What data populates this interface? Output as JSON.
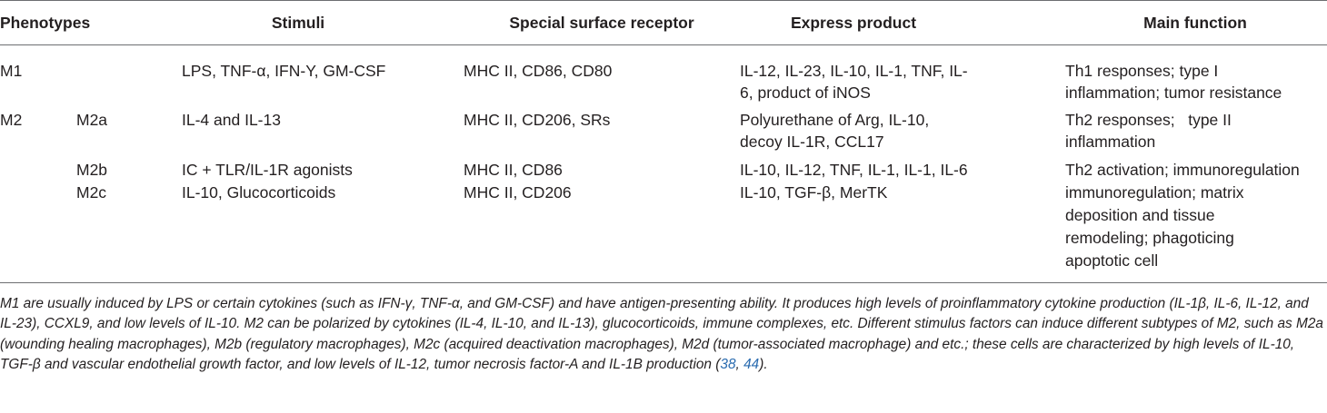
{
  "table": {
    "headers": {
      "phenotypes": "Phenotypes",
      "stimuli": "Stimuli",
      "receptor": "Special surface receptor",
      "product": "Express product",
      "function": "Main function"
    },
    "rows": [
      {
        "phenotype": "M1",
        "subtype": "",
        "stimuli": "LPS, TNF-α, IFN-Y, GM-CSF",
        "receptor": "MHC II, CD86, CD80",
        "product": [
          "IL-12, IL-23, IL-10, IL-1, TNF, IL-",
          "6, product of iNOS"
        ],
        "function": [
          "Th1 responses; type I",
          "inflammation; tumor resistance"
        ]
      },
      {
        "phenotype": "M2",
        "subtype": "M2a",
        "stimuli": "IL-4 and IL-13",
        "receptor": "MHC II, CD206, SRs",
        "product": [
          "Polyurethane of Arg, IL-10,",
          "decoy IL-1R, CCL17"
        ],
        "function": [
          "Th2 responses;   type II",
          "inflammation"
        ]
      },
      {
        "phenotype": "",
        "subtype": "M2b",
        "stimuli": "IC + TLR/IL-1R agonists",
        "receptor": "MHC II, CD86",
        "product": [
          "IL-10, IL-12, TNF, IL-1, IL-1, IL-6"
        ],
        "function": [
          "Th2 activation; immunoregulation"
        ]
      },
      {
        "phenotype": "",
        "subtype": "M2c",
        "stimuli": "IL-10, Glucocorticoids",
        "receptor": "MHC II, CD206",
        "product": [
          "IL-10, TGF-β, MerTK"
        ],
        "function": [
          "immunoregulation; matrix",
          "deposition and tissue",
          "remodeling; phagoticing",
          "apoptotic cell"
        ]
      }
    ]
  },
  "footnote": {
    "text": "M1 are usually induced by LPS or certain cytokines (such as IFN-γ, TNF-α, and GM-CSF) and have antigen-presenting ability. It produces high levels of proinflammatory cytokine production (IL-1β, IL-6, IL-12, and IL-23), CCXL9, and low levels of IL-10. M2 can be polarized by cytokines (IL-4, IL-10, and IL-13), glucocorticoids, immune complexes, etc. Different stimulus factors can induce different subtypes of M2, such as M2a (wounding healing macrophages), M2b (regulatory macrophages), M2c (acquired deactivation macrophages), M2d (tumor-associated macrophage) and etc.; these cells are characterized by high levels of IL-10, TGF-β and vascular endothelial growth factor, and low levels of IL-12, tumor necrosis factor-A and IL-1B production",
    "open": " (",
    "ref1": "38",
    "sep": ", ",
    "ref2": "44",
    "close": ")."
  }
}
